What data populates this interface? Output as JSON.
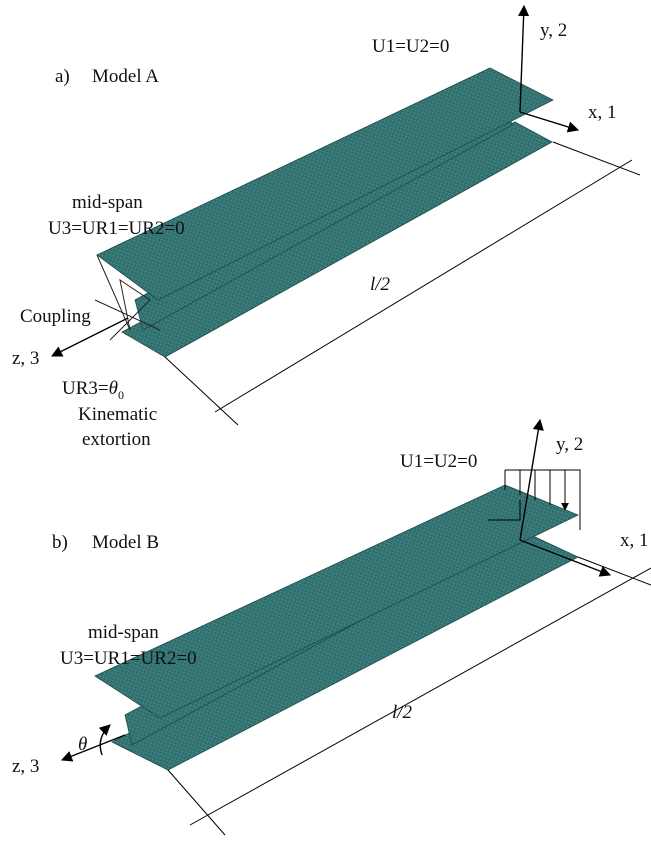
{
  "model_a": {
    "label": "a)",
    "title": "Model A",
    "support": "U1=U2=0",
    "y_axis": "y, 2",
    "x_axis": "x, 1",
    "midspan": "mid-span",
    "midspan_bc": "U3=UR1=UR2=0",
    "length": "l/2",
    "coupling": "Coupling",
    "z_axis": "z, 3",
    "rotation_prefix": "UR3=",
    "rotation_symbol": "θ",
    "rotation_subscript": "0",
    "load_line1": "Kinematic",
    "load_line2": "extortion"
  },
  "model_b": {
    "label": "b)",
    "title": "Model B",
    "support": "U1=U2=0",
    "y_axis": "y, 2",
    "x_axis": "x, 1",
    "midspan": "mid-span",
    "midspan_bc": "U3=UR1=UR2=0",
    "length": "l/2",
    "angle": "θ",
    "z_axis": "z, 3"
  }
}
